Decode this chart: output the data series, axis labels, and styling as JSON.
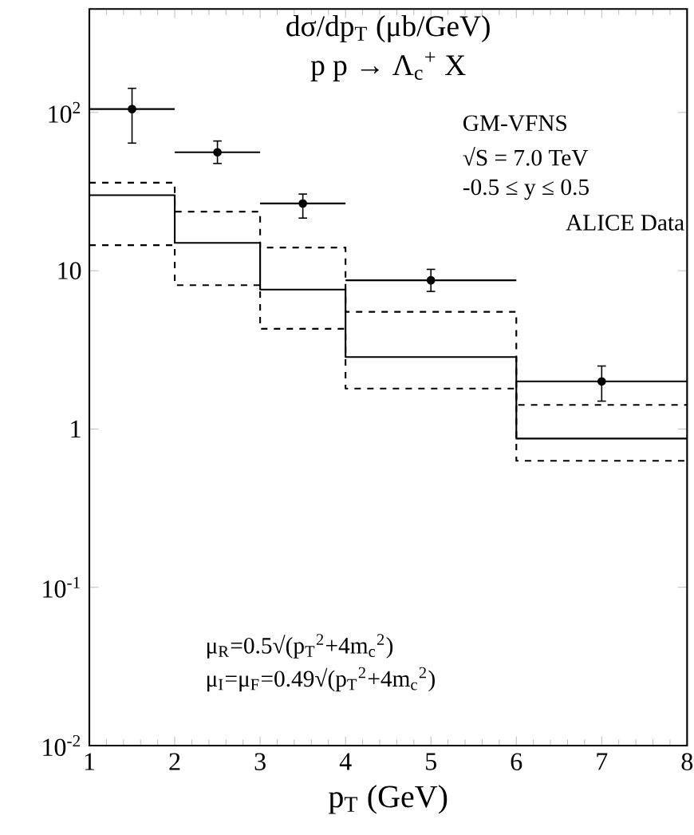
{
  "chart_data": {
    "type": "step",
    "title": "dσ/dp$_{T}$ (μb/GeV)",
    "subtitle": "p p → Λ$_{c}$$^{+}$ X",
    "xlabel": "p$_{T}$ (GeV)",
    "annotations": [
      "GM-VFNS",
      "√S = 7.0 TeV",
      "-0.5 ≤  y ≤ 0.5",
      "ALICE Data",
      "μ$_{R}$=0.5√(p$_{T}$$^{2}$+4m$_{c}$$^{2}$)",
      "μ$_{I}$=μ$_{F}$=0.49√(p$_{T}$$^{2}$+4m$_{c}$$^{2}$)"
    ],
    "log": "y",
    "xlim": [
      1,
      8
    ],
    "ylim": [
      0.01,
      450
    ],
    "xticks": [
      1,
      2,
      3,
      4,
      5,
      6,
      7,
      8
    ],
    "yticks": [
      {
        "value": 0.01,
        "label": "10$^{-2}$"
      },
      {
        "value": 0.1,
        "label": "10$^{-1}$"
      },
      1,
      10,
      {
        "value": 100,
        "label": "10$^{2}$"
      }
    ],
    "series": [
      {
        "color": "#000000",
        "line_style": "solid",
        "x": [
          1,
          2,
          3,
          4,
          6,
          8
        ],
        "values": [
          30,
          15,
          7.6,
          2.85,
          0.87,
          0.87
        ]
      },
      {
        "color": "#000000",
        "line_style": "dashed",
        "x": [
          1,
          2,
          3,
          4,
          6,
          8
        ],
        "values": [
          36,
          23.6,
          14,
          5.5,
          1.42,
          1.42
        ]
      },
      {
        "color": "#000000",
        "line_style": "dashed",
        "x": [
          1,
          2,
          3,
          4,
          6,
          8
        ],
        "values": [
          14.5,
          8.1,
          4.3,
          1.8,
          0.63,
          0.63
        ]
      },
      {
        "type": "scatter",
        "color": "#000000",
        "marker": "circle",
        "x": [
          1.5,
          2.5,
          3.5,
          5,
          7
        ],
        "values": [
          105,
          56,
          26.6,
          8.7,
          2.0
        ],
        "errors": [
          [
            64,
            142
          ],
          [
            47.6,
            66
          ],
          [
            21.5,
            30.5
          ],
          [
            7.4,
            10.2
          ],
          [
            1.5,
            2.5
          ]
        ],
        "xerrors": [
          0.5,
          0.5,
          0.5,
          1,
          1
        ]
      }
    ]
  }
}
